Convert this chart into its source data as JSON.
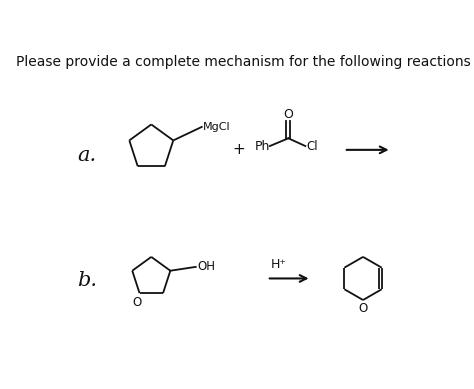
{
  "title": "Please provide a complete mechanism for the following reactions",
  "title_fontsize": 10,
  "background_color": "#ffffff",
  "text_color": "#111111",
  "line_color": "#111111",
  "line_width": 1.3,
  "label_a": "a.",
  "label_b": "b.",
  "label_fontsize": 15,
  "mgcl_text": "MgCl",
  "plus_text": "+",
  "ph_text": "Ph",
  "cl_text": "Cl",
  "o_text": "O",
  "oh_text": "OH",
  "h_plus_text": "H⁺",
  "o_ring_text": "O"
}
